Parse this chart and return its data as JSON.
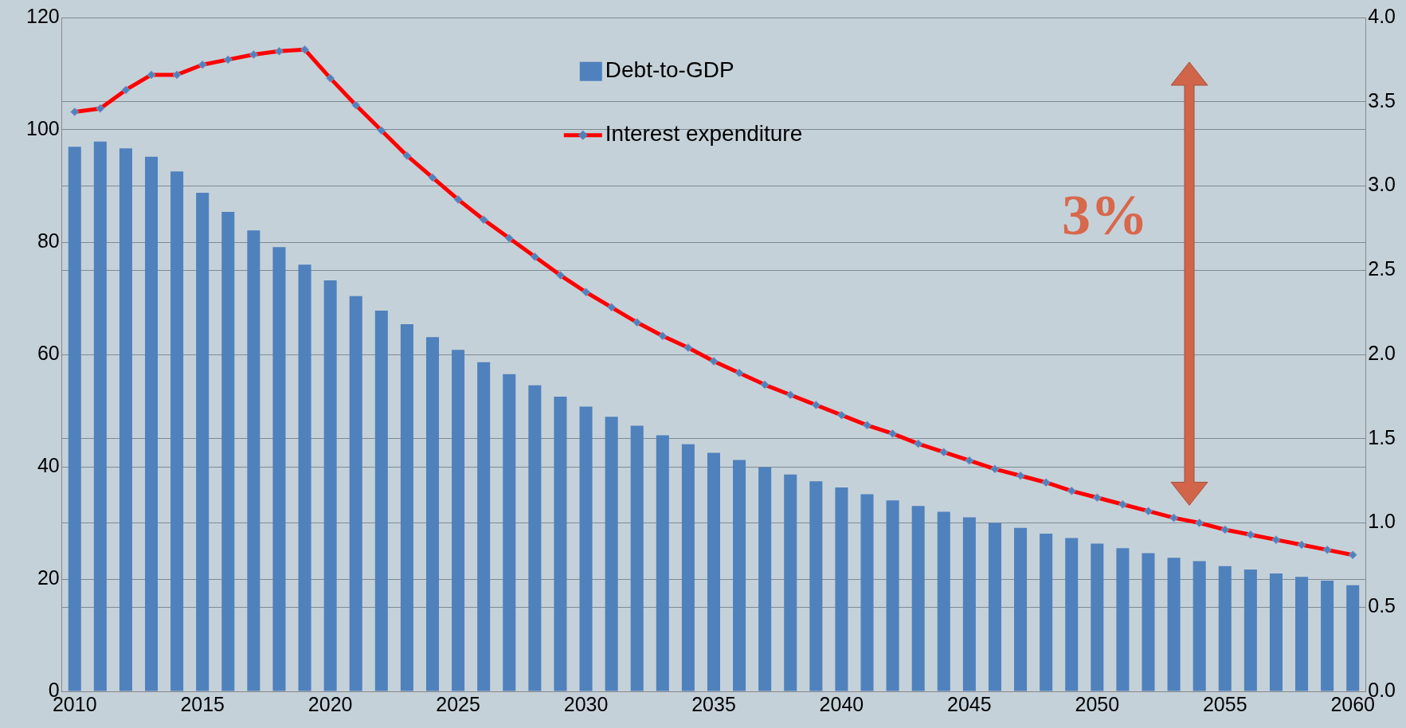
{
  "chart_data": {
    "type": "bar",
    "categories": [
      "2010",
      null,
      null,
      null,
      null,
      "2015",
      null,
      null,
      null,
      null,
      "2020",
      null,
      null,
      null,
      null,
      "2025",
      null,
      null,
      null,
      null,
      "2030",
      null,
      null,
      null,
      null,
      "2035",
      null,
      null,
      null,
      null,
      "2040",
      null,
      null,
      null,
      null,
      "2045",
      null,
      null,
      null,
      null,
      "2050",
      null,
      null,
      null,
      null,
      "2055",
      null,
      null,
      null,
      null,
      "2060"
    ],
    "series": [
      {
        "name": "Debt-to-GDP",
        "color": "#4f81bd",
        "values": [
          97.0,
          97.9,
          96.7,
          95.2,
          92.6,
          88.8,
          85.4,
          82.1,
          79.1,
          76.0,
          73.2,
          70.4,
          67.8,
          65.4,
          63.1,
          60.8,
          58.6,
          56.5,
          54.5,
          52.5,
          50.7,
          48.9,
          47.3,
          45.6,
          44.0,
          42.5,
          41.2,
          39.9,
          38.6,
          37.4,
          36.3,
          35.1,
          34.0,
          33.0,
          32.0,
          31.0,
          30.0,
          29.1,
          28.1,
          27.3,
          26.3,
          25.5,
          24.6,
          23.8,
          23.2,
          22.3,
          21.7,
          21.0,
          20.4,
          19.7,
          18.9
        ]
      },
      {
        "name": "Interest expenditure",
        "type": "line",
        "axis": "y2",
        "color": "#ff0000",
        "values": [
          3.44,
          3.46,
          3.57,
          3.66,
          3.66,
          3.72,
          3.75,
          3.78,
          3.8,
          3.81,
          3.64,
          3.48,
          3.33,
          3.18,
          3.05,
          2.92,
          2.8,
          2.69,
          2.58,
          2.47,
          2.37,
          2.28,
          2.19,
          2.11,
          2.04,
          1.96,
          1.89,
          1.82,
          1.76,
          1.7,
          1.64,
          1.58,
          1.53,
          1.47,
          1.42,
          1.37,
          1.32,
          1.28,
          1.24,
          1.19,
          1.15,
          1.11,
          1.07,
          1.03,
          1.0,
          0.96,
          0.93,
          0.9,
          0.87,
          0.84,
          0.81
        ]
      }
    ],
    "ylim": [
      0,
      120
    ],
    "yticks": [
      0,
      20,
      40,
      60,
      80,
      100,
      120
    ],
    "y2lim": [
      0,
      4
    ],
    "y2ticks": [
      {
        "value": 0,
        "label": "0.0"
      },
      {
        "value": 0.5,
        "label": "0.5"
      },
      {
        "value": 1,
        "label": "1.0"
      },
      {
        "value": 1.5,
        "label": "1.5"
      },
      {
        "value": 2,
        "label": "2.0"
      },
      {
        "value": 2.5,
        "label": "2.5"
      },
      {
        "value": 3,
        "label": "3.0"
      },
      {
        "value": 3.5,
        "label": "3.5"
      },
      {
        "value": 4,
        "label": "4.0"
      }
    ],
    "annotations": [
      "3%"
    ],
    "grid": "y",
    "legend": "top",
    "marker": "diamond",
    "line_style": "solid"
  }
}
